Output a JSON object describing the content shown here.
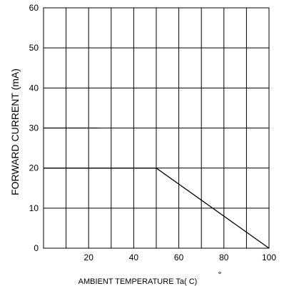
{
  "chart_data": {
    "type": "line",
    "title": "",
    "xlabel": "AMBIENT TEMPERATURE Ta( C)",
    "xlabel_degree": "°",
    "ylabel": "FORWARD CURRENT (mA)",
    "xlim": [
      0,
      100
    ],
    "ylim": [
      0,
      60
    ],
    "x_major_ticks": [
      20,
      40,
      60,
      80,
      100
    ],
    "x_grid": [
      10,
      20,
      30,
      40,
      50,
      60,
      70,
      80,
      90
    ],
    "y_ticks": [
      0,
      10,
      20,
      30,
      40,
      50,
      60
    ],
    "grid": true,
    "series": [
      {
        "x": [
          0,
          50,
          100
        ],
        "y": [
          20,
          20,
          0
        ]
      }
    ],
    "reference_lines": [
      {
        "x": [
          0,
          25
        ],
        "y": [
          30,
          30
        ]
      }
    ],
    "colors": {
      "line": "#000000",
      "grid": "#000000",
      "background": "#ffffff"
    }
  }
}
